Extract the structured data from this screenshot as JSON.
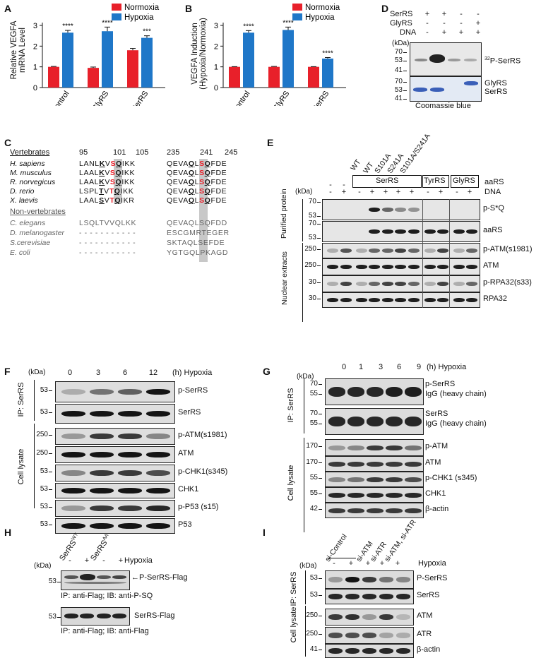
{
  "panels": {
    "A": "A",
    "B": "B",
    "C": "C",
    "D": "D",
    "E": "E",
    "F": "F",
    "G": "G",
    "H": "H",
    "I": "I"
  },
  "chart_data": [
    {
      "type": "bar",
      "panel": "A",
      "ylabel": "Relative VEGFA mRNA Level",
      "categories": [
        "sh-Control",
        "sh-GlyRS",
        "sh-SerRS"
      ],
      "series": [
        {
          "name": "Normoxia",
          "color": "#e8202a",
          "values": [
            1.0,
            0.95,
            1.8
          ],
          "errors": [
            0.02,
            0.04,
            0.09
          ]
        },
        {
          "name": "Hypoxia",
          "color": "#1f77c8",
          "values": [
            2.65,
            2.72,
            2.4
          ],
          "errors": [
            0.11,
            0.2,
            0.1
          ]
        }
      ],
      "significance": [
        "****",
        "****",
        "***"
      ],
      "ylim": [
        0,
        3
      ],
      "yticks": [
        "0",
        "1",
        "2",
        "3"
      ]
    },
    {
      "type": "bar",
      "panel": "B",
      "ylabel": "VEGFA Induction (Hypoxia/Normoxia)",
      "ylabel_lines": [
        "VEGFA Induction",
        "(Hypoxia/Normoxia)"
      ],
      "categories": [
        "sh-Control",
        "sh-GlyRS",
        "sh-SerRS"
      ],
      "series": [
        {
          "name": "Normoxia",
          "color": "#e8202a",
          "values": [
            1.0,
            1.0,
            1.0
          ],
          "errors": [
            0.01,
            0.02,
            0.01
          ]
        },
        {
          "name": "Hypoxia",
          "color": "#1f77c8",
          "values": [
            2.65,
            2.78,
            1.4
          ],
          "errors": [
            0.1,
            0.14,
            0.05
          ]
        }
      ],
      "significance": [
        "****",
        "****",
        "****"
      ],
      "ylim": [
        0,
        3
      ],
      "yticks": [
        "0",
        "1",
        "2",
        "3"
      ]
    }
  ],
  "ylabel_A_lines": [
    "Relative VEGFA",
    "mRNA Level"
  ],
  "D": {
    "rows": [
      {
        "name": "SerRS",
        "signs": [
          "+",
          "+",
          "-",
          "-"
        ]
      },
      {
        "name": "GlyRS",
        "signs": [
          "-",
          "-",
          "-",
          "+"
        ]
      },
      {
        "name": "DNA",
        "signs": [
          "-",
          "+",
          "+",
          "+"
        ]
      }
    ],
    "kda": "(kDa)",
    "markers_top": [
      "70",
      "53",
      "41"
    ],
    "markers_bottom": [
      "70",
      "53",
      "41"
    ],
    "label_top": "32P-SerRS",
    "label_top_sup": "32",
    "label_top_main": "P-SerRS",
    "label_bottom_1": "GlyRS",
    "label_bottom_2": "SerRS",
    "caption": "Coomassie blue"
  },
  "C": {
    "vert_title": "Vertebrates",
    "nonvert_title": "Non-vertebrates",
    "pos_left": [
      "95",
      "101",
      "105"
    ],
    "pos_right": [
      "235",
      "241",
      "245"
    ],
    "species_vert": [
      "H. sapiens",
      "M. musculus",
      "R. norvegicus",
      "D. rerio",
      "X. laevis"
    ],
    "species_nonvert": [
      "C. elegans",
      "D. melanogaster",
      "S.cerevisiae",
      "E. coli"
    ],
    "seq_left_vert": [
      "LANLKVSQIKK",
      "LAALKVSQIKK",
      "LAALKVSQIKK",
      "LSPLTVTQIKK",
      "LAALSVTQIKR"
    ],
    "seq_right_vert": [
      "QEVAQLSQFDE",
      "QEVAQLSQFDE",
      "QEVAQLSQFDE",
      "QEVAQLSQFDE",
      "QEVAQLSQFDE"
    ],
    "seq_left_nonvert": [
      "LSQLTVVQLKK",
      "- - - - - - - - - - -",
      "- - - - - - - - - - -",
      "- - - - - - - - - - -"
    ],
    "seq_right_nonvert": [
      "QEVAQLSQFDD",
      "ESCGMRTEGER",
      "SKTAQLSEFDE",
      "YGTGQLPKAGD"
    ]
  },
  "E": {
    "mutants": [
      "WT",
      "WT",
      "S101A",
      "S241A",
      "S101A/S241A"
    ],
    "serrs": "SerRS",
    "tyrrs": "TyrRS",
    "glyrs": "GlyRS",
    "aars": "aaRS",
    "dna": "DNA",
    "kda": "(kDa)",
    "dash_top": [
      "-",
      "-"
    ],
    "dna_signs": [
      "-",
      "+",
      "-",
      "+",
      "+",
      "+",
      "+",
      "-",
      "+",
      "-",
      "+"
    ],
    "side1": "Purified protein",
    "side2": "Nuclear extracts",
    "rows": [
      "p-S*Q",
      "aaRS",
      "p-ATM(s1981)",
      "ATM",
      "p-RPA32(s33)",
      "RPA32"
    ],
    "markers": [
      [
        "70",
        "53"
      ],
      [
        "70",
        "53"
      ],
      [
        "250"
      ],
      [
        "250"
      ],
      [
        "30"
      ],
      [
        "30"
      ]
    ]
  },
  "F": {
    "kda": "(kDa)",
    "times": [
      "0",
      "3",
      "6",
      "12"
    ],
    "unit": "(h) Hypoxia",
    "side1": "IP: SerRS",
    "side2": "Cell lysate",
    "rows": [
      "p-SerRS",
      "SerRS",
      "p-ATM(s1981)",
      "ATM",
      "p-CHK1(s345)",
      "CHK1",
      "p-P53 (s15)",
      "P53"
    ],
    "markers": [
      "53",
      "53",
      "250",
      "250",
      "53",
      "53",
      "53",
      "53"
    ]
  },
  "G": {
    "kda": "(kDa)",
    "times": [
      "0",
      "1",
      "3",
      "6",
      "9"
    ],
    "unit": "(h) Hypoxia",
    "side1": "IP: SerRS",
    "side2": "Cell lysate",
    "rows": [
      "p-SerRS",
      "IgG (heavy chain)",
      "SerRS",
      "IgG (heavy chain)",
      "p-ATM",
      "ATM",
      "p-CHK1 (s345)",
      "CHK1",
      "β-actin"
    ],
    "markers": [
      "70",
      "55",
      "70",
      "55",
      "170",
      "170",
      "55",
      "55",
      "42"
    ]
  },
  "H": {
    "wt": "SerRS",
    "wt_sup": "WT",
    "aa": "SerRS",
    "aa_sup": "AA",
    "signs": [
      "-",
      "+",
      "-",
      "+"
    ],
    "hyp": "Hypoxia",
    "kda": "(kDa)",
    "marker1": "53",
    "marker2": "53",
    "label1": "P-SerRS-Flag",
    "label2": "SerRS-Flag",
    "cap1": "IP: anti-Flag; IB: anti-P-SQ",
    "cap2": "IP: anti-Flag; IB: anti-Flag"
  },
  "I": {
    "sirna": [
      "si-Control",
      "si-ATM",
      "si-ATR",
      "si-ATM, si-ATR"
    ],
    "signs": [
      "-",
      "+",
      "+",
      "+",
      "+"
    ],
    "hyp": "Hypoxia",
    "kda": "(kDa)",
    "side1": "IP: SerRS",
    "side2": "Cell lysate",
    "rows": [
      "P-SerRS",
      "SerRS",
      "ATM",
      "ATR",
      "β-actin"
    ],
    "markers": [
      "53",
      "53",
      "250",
      "250",
      "41"
    ]
  }
}
